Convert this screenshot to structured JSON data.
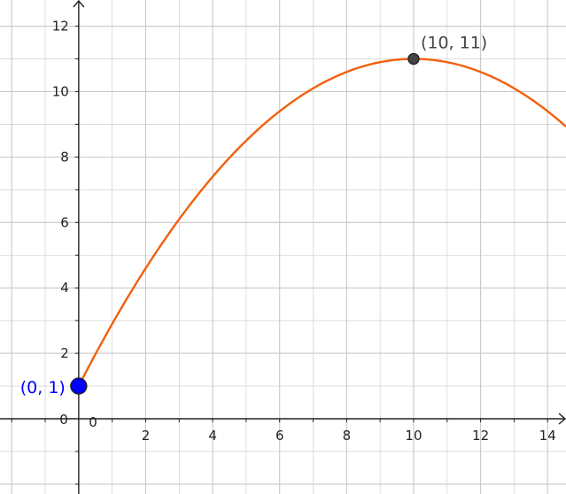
{
  "chart_data": {
    "type": "line",
    "xlim": [
      -2.35,
      14.55
    ],
    "ylim": [
      -2.3,
      12.8
    ],
    "grid": true,
    "x_ticks": [
      2,
      4,
      6,
      8,
      10,
      12,
      14
    ],
    "y_ticks": [
      2,
      4,
      6,
      8,
      10,
      12
    ],
    "x_tick_labels": [
      "2",
      "4",
      "6",
      "8",
      "10",
      "12",
      "14"
    ],
    "y_tick_labels": [
      "2",
      "4",
      "6",
      "8",
      "10",
      "12"
    ],
    "origin_x_label": "0",
    "origin_y_label": "0",
    "curve": {
      "vertex": [
        10,
        11
      ],
      "a": -0.1,
      "equation": "y = -0.1(x - 10)^2 + 11",
      "x_range": [
        0,
        14.55
      ]
    },
    "points": [
      {
        "x": 0,
        "y": 1,
        "label": "(0, 1)",
        "color": "#0000ff"
      },
      {
        "x": 10,
        "y": 11,
        "label": "(10, 11)",
        "color": "#444444"
      }
    ],
    "colors": {
      "curve": "#f2600c",
      "grid": "#c8c8c8",
      "axis": "#222222"
    }
  }
}
